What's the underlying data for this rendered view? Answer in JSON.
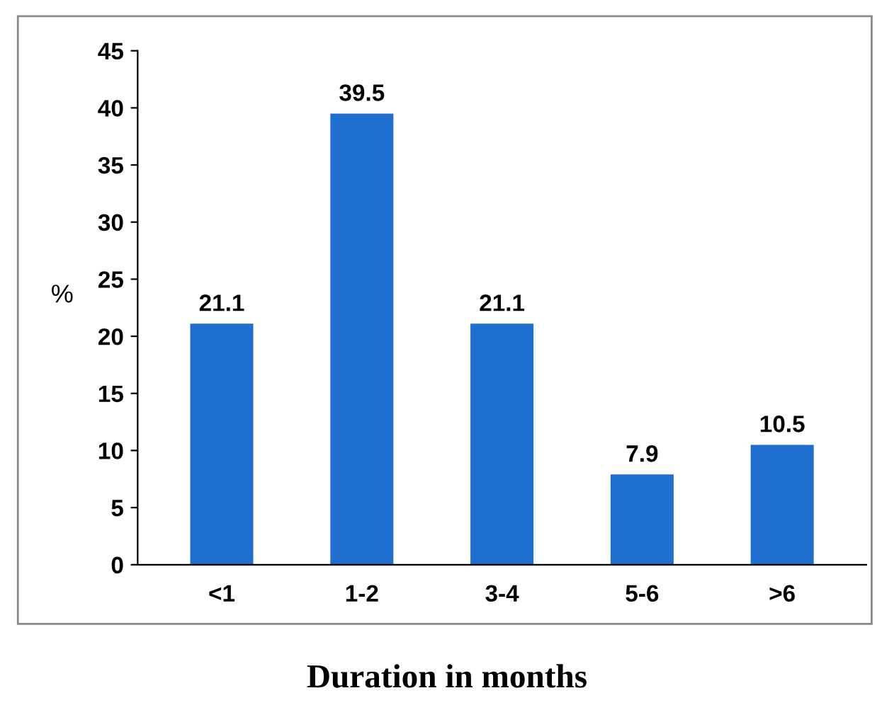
{
  "chart_data": {
    "type": "bar",
    "xlabel": "Duration in months",
    "ylabel": "%",
    "categories": [
      "<1",
      "1-2",
      "3-4",
      "5-6",
      ">6"
    ],
    "values": [
      21.1,
      39.5,
      21.1,
      7.9,
      10.5
    ],
    "color": "#1f6fd1",
    "ylim": [
      0,
      45
    ],
    "yticks": [
      0,
      5,
      10,
      15,
      20,
      25,
      30,
      35,
      40,
      45
    ],
    "data_labels": true,
    "grid": false,
    "legend": false
  }
}
